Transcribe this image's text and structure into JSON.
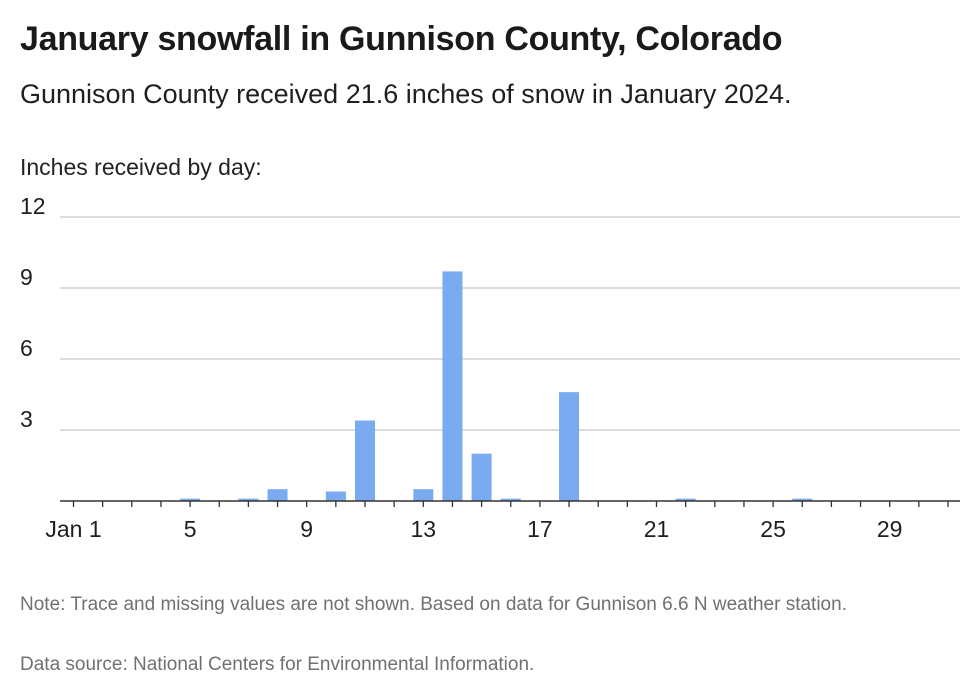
{
  "title": "January snowfall in Gunnison County, Colorado",
  "subtitle": "Gunnison County received 21.6 inches of snow in January 2024.",
  "note": "Note: Trace and missing values are not shown. Based on data for Gunnison 6.6 N weather station.",
  "source": "Data source: National Centers for Environmental Information.",
  "colors": {
    "bar": "#7aaaf0",
    "grid": "#c8c8c8",
    "axis": "#333333"
  },
  "chart_data": {
    "type": "bar",
    "title": "January snowfall in Gunnison County, Colorado",
    "ylabel": "Inches received by day:",
    "xlabel": "",
    "ylim": [
      0,
      12
    ],
    "yticks": [
      3,
      6,
      9,
      12
    ],
    "grid": true,
    "x": [
      1,
      2,
      3,
      4,
      5,
      6,
      7,
      8,
      9,
      10,
      11,
      12,
      13,
      14,
      15,
      16,
      17,
      18,
      19,
      20,
      21,
      22,
      23,
      24,
      25,
      26,
      27,
      28,
      29,
      30,
      31
    ],
    "values": [
      0,
      0,
      0,
      0,
      0.1,
      0,
      0.1,
      0.5,
      0,
      0.4,
      3.4,
      0,
      0.5,
      9.7,
      2.0,
      0.1,
      0,
      4.6,
      0,
      0,
      0,
      0.1,
      0,
      0,
      0,
      0.1,
      0,
      0,
      0,
      0,
      0
    ],
    "xtick_values": [
      1,
      5,
      9,
      13,
      17,
      21,
      25,
      29
    ],
    "xtick_labels": [
      "Jan 1",
      "5",
      "9",
      "13",
      "17",
      "21",
      "25",
      "29"
    ]
  }
}
